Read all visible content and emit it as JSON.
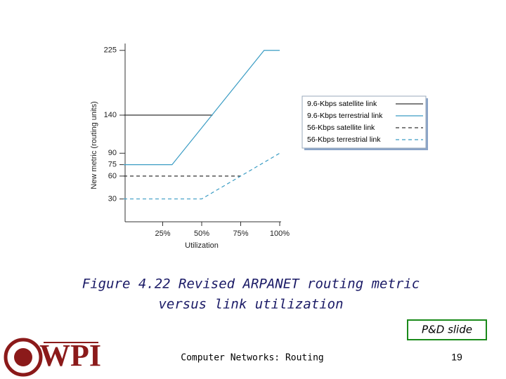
{
  "chart_data": {
    "type": "line",
    "xlabel": "Utilization",
    "ylabel": "New metric (routing units)",
    "xlim": [
      0,
      100
    ],
    "ylim": [
      0,
      234
    ],
    "xticks": [
      {
        "value": 25,
        "label": "25%"
      },
      {
        "value": 50,
        "label": "50%"
      },
      {
        "value": 75,
        "label": "75%"
      },
      {
        "value": 100,
        "label": "100%"
      }
    ],
    "yticks": [
      30,
      60,
      75,
      90,
      140,
      225
    ],
    "legend": "right",
    "series": [
      {
        "name": "9.6-Kbps satellite link",
        "color": "#333333",
        "style": "solid",
        "x": [
          0,
          57
        ],
        "values": [
          140,
          140
        ]
      },
      {
        "name": "9.6-Kbps terrestrial link",
        "color": "#3a9cc4",
        "style": "solid",
        "x": [
          0,
          31,
          90,
          100
        ],
        "values": [
          75,
          75,
          225,
          225
        ]
      },
      {
        "name": "56-Kbps satellite link",
        "color": "#333333",
        "style": "dashed",
        "x": [
          0,
          75
        ],
        "values": [
          60,
          60
        ]
      },
      {
        "name": "56-Kbps terrestrial link",
        "color": "#3a9cc4",
        "style": "dashed",
        "x": [
          0,
          50,
          100
        ],
        "values": [
          30,
          30,
          90
        ]
      }
    ]
  },
  "slide": {
    "caption_line1": "Figure 4.22 Revised ARPANET routing metric",
    "caption_line2": "versus link utilization",
    "badge": "P&D slide",
    "footer": "Computer Networks: Routing",
    "page": "19",
    "logo": "WPI"
  }
}
